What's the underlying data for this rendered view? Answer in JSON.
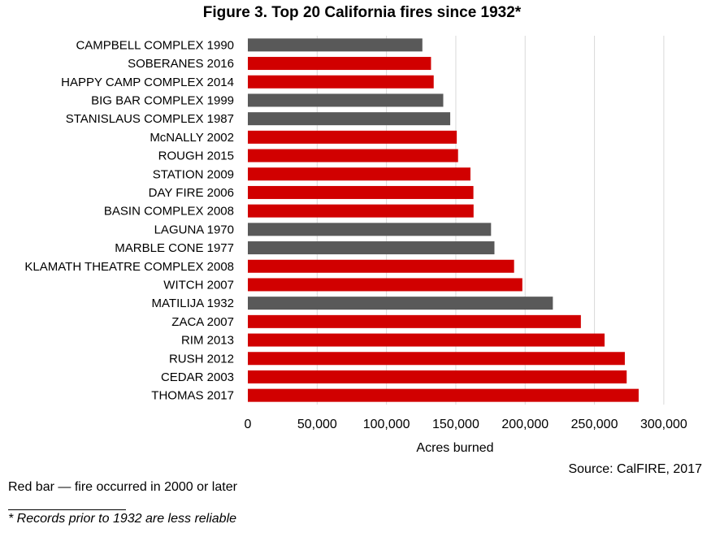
{
  "chart_data": {
    "type": "bar",
    "orientation": "horizontal",
    "title": "Figure 3. Top 20 California fires since 1932*",
    "xlabel": "Acres burned",
    "ylabel": "",
    "xlim": [
      0,
      320000
    ],
    "xticks": [
      0,
      50000,
      100000,
      150000,
      200000,
      250000,
      300000
    ],
    "xtick_labels": [
      "0",
      "50,000",
      "100,000",
      "150,000",
      "200,000",
      "250,000",
      "300,000"
    ],
    "grid": true,
    "categories": [
      "CAMPBELL COMPLEX 1990",
      "SOBERANES 2016",
      "HAPPY CAMP COMPLEX 2014",
      "BIG BAR COMPLEX 1999",
      "STANISLAUS COMPLEX 1987",
      "McNALLY 2002",
      "ROUGH 2015",
      "STATION 2009",
      "DAY FIRE 2006",
      "BASIN COMPLEX 2008",
      "LAGUNA 1970",
      "MARBLE CONE 1977",
      "KLAMATH THEATRE COMPLEX 2008",
      "WITCH 2007",
      "MATILIJA 1932",
      "ZACA 2007",
      "RIM 2013",
      "RUSH 2012",
      "CEDAR 2003",
      "THOMAS 2017"
    ],
    "values": [
      125892,
      132127,
      134056,
      140948,
      145980,
      150696,
      151623,
      160557,
      162702,
      162818,
      175425,
      177866,
      192038,
      197990,
      220000,
      240207,
      257314,
      271911,
      273246,
      281893
    ],
    "bar_colors": [
      "#595959",
      "#d10000",
      "#d10000",
      "#595959",
      "#595959",
      "#d10000",
      "#d10000",
      "#d10000",
      "#d10000",
      "#d10000",
      "#595959",
      "#595959",
      "#d10000",
      "#d10000",
      "#595959",
      "#d10000",
      "#d10000",
      "#d10000",
      "#d10000",
      "#d10000"
    ],
    "colors": {
      "after_2000": "#d10000",
      "before_2000": "#595959",
      "grid": "#d9d9d9"
    }
  },
  "notes": {
    "source": "Source: CalFIRE, 2017",
    "legend": "Red bar — fire occurred in 2000 or later",
    "footnote": "* Records prior to 1932 are less reliable"
  }
}
